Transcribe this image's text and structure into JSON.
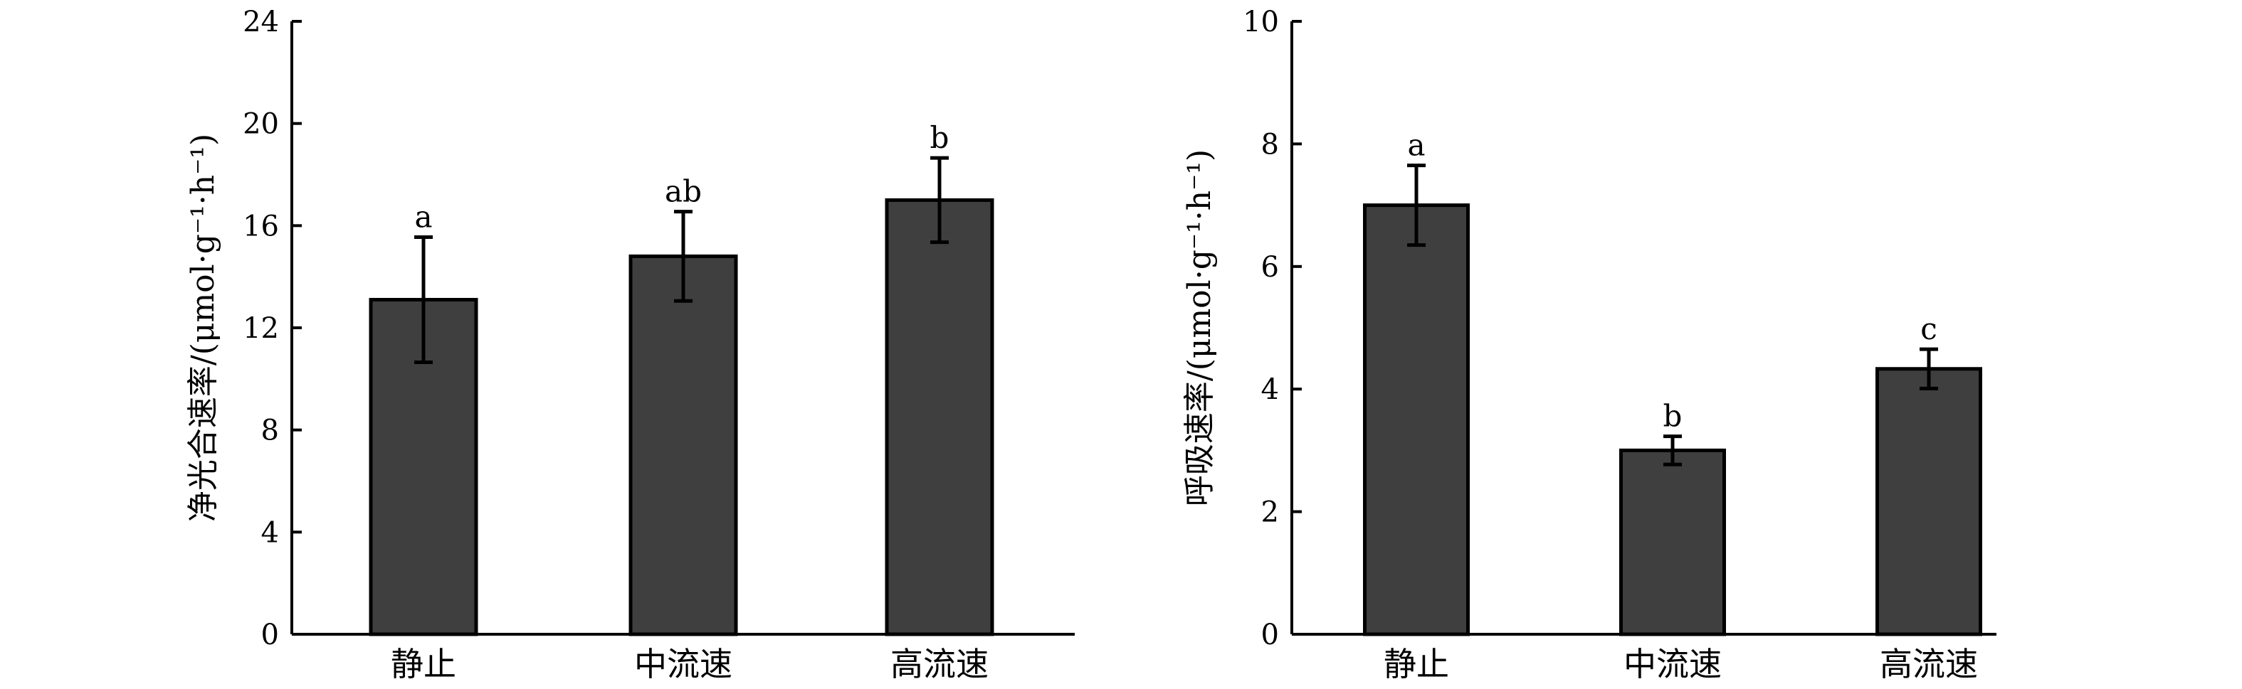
{
  "chart_data": [
    {
      "type": "bar",
      "categories": [
        "静止",
        "中流速",
        "高流速"
      ],
      "values": [
        13.1,
        14.8,
        17.0
      ],
      "errors": [
        2.45,
        1.75,
        1.65
      ],
      "significance": [
        "a",
        "ab",
        "b"
      ],
      "ylabel": "净光合速率/(μmol·g⁻¹·h⁻¹)",
      "ylim": [
        0,
        24
      ],
      "yticks": [
        0,
        4,
        8,
        12,
        16,
        20,
        24
      ],
      "grid": false,
      "bar_color": "#3f3f3f"
    },
    {
      "type": "bar",
      "categories": [
        "静止",
        "中流速",
        "高流速"
      ],
      "values": [
        7.0,
        3.0,
        4.33
      ],
      "errors": [
        0.65,
        0.23,
        0.32
      ],
      "significance": [
        "a",
        "b",
        "c"
      ],
      "ylabel": "呼吸速率/(μmol·g⁻¹·h⁻¹)",
      "ylim": [
        0,
        10
      ],
      "yticks": [
        0,
        2,
        4,
        6,
        8,
        10
      ],
      "grid": false,
      "bar_color": "#3f3f3f"
    }
  ]
}
